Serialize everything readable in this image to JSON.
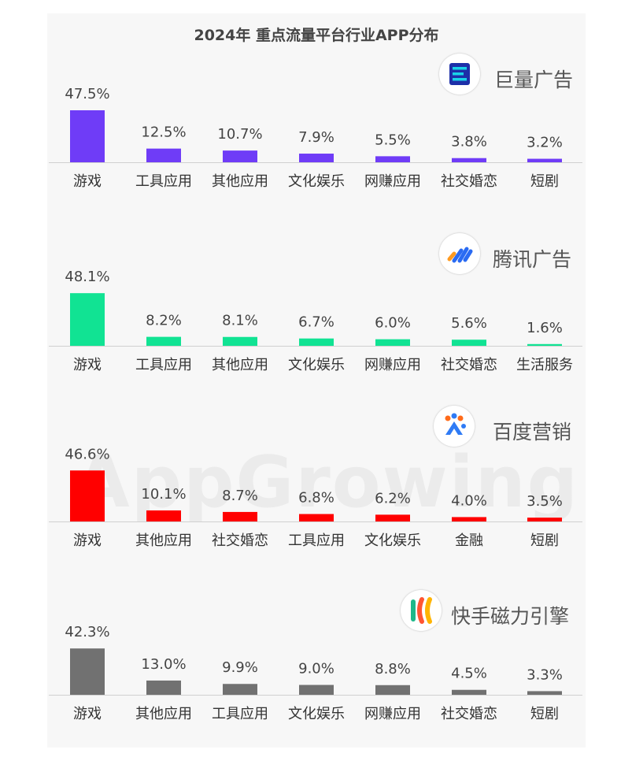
{
  "title": "2024年 重点流量平台行业APP分布",
  "watermark": "AppGrowing",
  "panels": [
    {
      "platform": "巨量广告",
      "logo_icon": "ocean-engine-logo-icon",
      "color": "#6f3cf7"
    },
    {
      "platform": "腾讯广告",
      "logo_icon": "tencent-ads-logo-icon",
      "color": "#11e393"
    },
    {
      "platform": "百度营销",
      "logo_icon": "baidu-marketing-logo-icon",
      "color": "#ff0000"
    },
    {
      "platform": "快手磁力引擎",
      "logo_icon": "kuaishou-magnetic-engine-logo-icon",
      "color": "#717171"
    }
  ],
  "chart_data": [
    {
      "type": "bar",
      "title": "巨量广告",
      "categories": [
        "游戏",
        "工具应用",
        "其他应用",
        "文化娱乐",
        "网赚应用",
        "社交婚恋",
        "短剧"
      ],
      "values": [
        47.5,
        12.5,
        10.7,
        7.9,
        5.5,
        3.8,
        3.2
      ],
      "value_labels": [
        "47.5%",
        "12.5%",
        "10.7%",
        "7.9%",
        "5.5%",
        "3.8%",
        "3.2%"
      ],
      "unit": "%",
      "grid": false,
      "legend": "none"
    },
    {
      "type": "bar",
      "title": "腾讯广告",
      "categories": [
        "游戏",
        "工具应用",
        "其他应用",
        "文化娱乐",
        "网赚应用",
        "社交婚恋",
        "生活服务"
      ],
      "values": [
        48.1,
        8.2,
        8.1,
        6.7,
        6.0,
        5.6,
        1.6
      ],
      "value_labels": [
        "48.1%",
        "8.2%",
        "8.1%",
        "6.7%",
        "6.0%",
        "5.6%",
        "1.6%"
      ],
      "unit": "%",
      "grid": false,
      "legend": "none"
    },
    {
      "type": "bar",
      "title": "百度营销",
      "categories": [
        "游戏",
        "其他应用",
        "社交婚恋",
        "工具应用",
        "文化娱乐",
        "金融",
        "短剧"
      ],
      "values": [
        46.6,
        10.1,
        8.7,
        6.8,
        6.2,
        4.0,
        3.5
      ],
      "value_labels": [
        "46.6%",
        "10.1%",
        "8.7%",
        "6.8%",
        "6.2%",
        "4.0%",
        "3.5%"
      ],
      "unit": "%",
      "grid": false,
      "legend": "none"
    },
    {
      "type": "bar",
      "title": "快手磁力引擎",
      "categories": [
        "游戏",
        "其他应用",
        "工具应用",
        "文化娱乐",
        "网赚应用",
        "社交婚恋",
        "短剧"
      ],
      "values": [
        42.3,
        13.0,
        9.9,
        9.0,
        8.8,
        4.5,
        3.3
      ],
      "value_labels": [
        "42.3%",
        "13.0%",
        "9.9%",
        "9.0%",
        "8.8%",
        "4.5%",
        "3.3%"
      ],
      "unit": "%",
      "grid": false,
      "legend": "none"
    }
  ]
}
